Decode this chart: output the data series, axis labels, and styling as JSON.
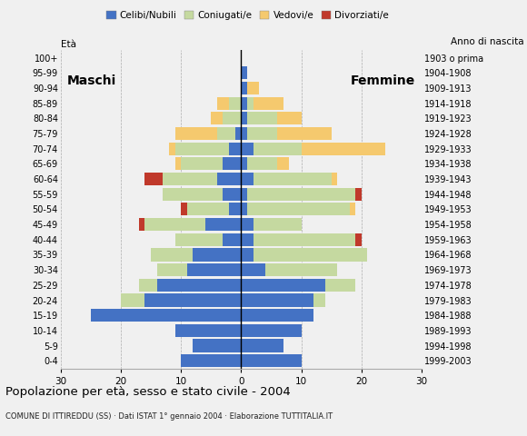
{
  "age_groups": [
    "0-4",
    "5-9",
    "10-14",
    "15-19",
    "20-24",
    "25-29",
    "30-34",
    "35-39",
    "40-44",
    "45-49",
    "50-54",
    "55-59",
    "60-64",
    "65-69",
    "70-74",
    "75-79",
    "80-84",
    "85-89",
    "90-94",
    "95-99",
    "100+"
  ],
  "birth_years": [
    "1999-2003",
    "1994-1998",
    "1989-1993",
    "1984-1988",
    "1979-1983",
    "1974-1978",
    "1969-1973",
    "1964-1968",
    "1959-1963",
    "1954-1958",
    "1949-1953",
    "1944-1948",
    "1939-1943",
    "1934-1938",
    "1929-1933",
    "1924-1928",
    "1919-1923",
    "1914-1918",
    "1909-1913",
    "1904-1908",
    "1903 o prima"
  ],
  "male": {
    "celibe": [
      10,
      8,
      11,
      25,
      16,
      14,
      9,
      8,
      3,
      6,
      2,
      3,
      4,
      3,
      2,
      1,
      0,
      0,
      0,
      0,
      0
    ],
    "coniugato": [
      0,
      0,
      0,
      0,
      4,
      3,
      5,
      7,
      8,
      10,
      7,
      10,
      9,
      7,
      9,
      3,
      3,
      2,
      0,
      0,
      0
    ],
    "vedovo": [
      0,
      0,
      0,
      0,
      0,
      0,
      0,
      0,
      0,
      0,
      0,
      0,
      0,
      1,
      1,
      7,
      2,
      2,
      0,
      0,
      0
    ],
    "divorziato": [
      0,
      0,
      0,
      0,
      0,
      0,
      0,
      0,
      0,
      1,
      1,
      0,
      3,
      0,
      0,
      0,
      0,
      0,
      0,
      0,
      0
    ]
  },
  "female": {
    "nubile": [
      10,
      7,
      10,
      12,
      12,
      14,
      4,
      2,
      2,
      2,
      1,
      1,
      2,
      1,
      2,
      1,
      1,
      1,
      1,
      1,
      0
    ],
    "coniugata": [
      0,
      0,
      0,
      0,
      2,
      5,
      12,
      19,
      17,
      8,
      17,
      18,
      13,
      5,
      8,
      5,
      5,
      1,
      0,
      0,
      0
    ],
    "vedova": [
      0,
      0,
      0,
      0,
      0,
      0,
      0,
      0,
      0,
      0,
      1,
      0,
      1,
      2,
      14,
      9,
      4,
      5,
      2,
      0,
      0
    ],
    "divorziata": [
      0,
      0,
      0,
      0,
      0,
      0,
      0,
      0,
      1,
      0,
      0,
      1,
      0,
      0,
      0,
      0,
      0,
      0,
      0,
      0,
      0
    ]
  },
  "colors": {
    "celibe_nubile": "#4472C4",
    "coniugato_coniugata": "#c5d9a0",
    "vedovo_vedova": "#f5c96e",
    "divorziato_divorziata": "#c0392b"
  },
  "title": "Popolazione per età, sesso e stato civile - 2004",
  "subtitle": "COMUNE DI ITTIREDDU (SS) · Dati ISTAT 1° gennaio 2004 · Elaborazione TUTTITALIA.IT",
  "legend_labels": [
    "Celibi/Nubili",
    "Coniugati/e",
    "Vedovi/e",
    "Divorziati/e"
  ],
  "xlim": 30,
  "xlabel_left": "Maschi",
  "xlabel_right": "Femmine",
  "ylabel": "Età",
  "ylabel_right": "Anno di nascita",
  "background_color": "#f0f0f0"
}
